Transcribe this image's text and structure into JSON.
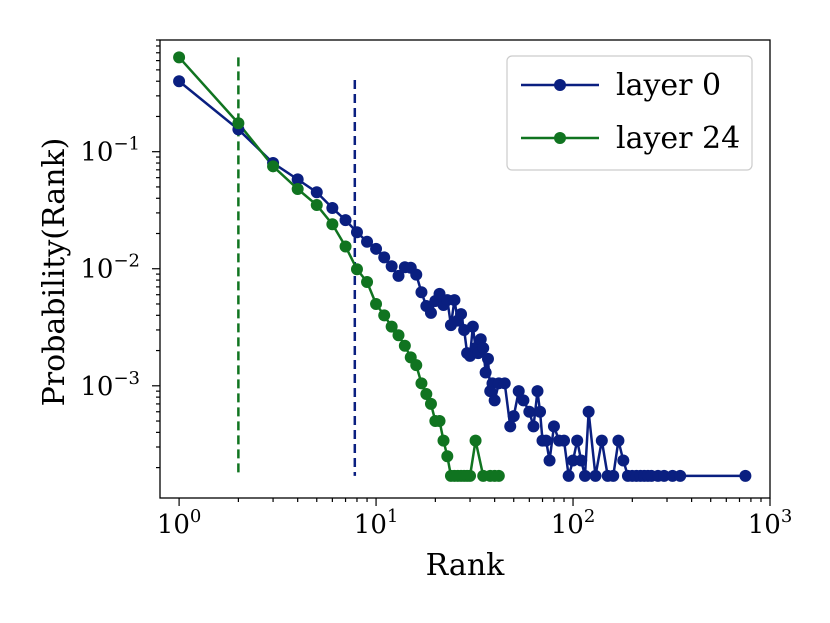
{
  "chart_data": {
    "type": "line",
    "xscale": "log",
    "yscale": "log",
    "xlim": [
      0.8,
      1000
    ],
    "ylim": [
      0.00011,
      0.9
    ],
    "xlabel": "Rank",
    "ylabel": "Probability(Rank)",
    "legend_position": "top-right",
    "x_ticks": [
      {
        "value": 1,
        "label": "10",
        "exp": "0"
      },
      {
        "value": 10,
        "label": "10",
        "exp": "1"
      },
      {
        "value": 100,
        "label": "10",
        "exp": "2"
      },
      {
        "value": 1000,
        "label": "10",
        "exp": "3"
      }
    ],
    "y_ticks": [
      {
        "value": 0.1,
        "label": "10",
        "exp": "−1"
      },
      {
        "value": 0.01,
        "label": "10",
        "exp": "−2"
      },
      {
        "value": 0.001,
        "label": "10",
        "exp": "−3"
      }
    ],
    "series": [
      {
        "name": "layer 0",
        "color": "#0a1f80",
        "x": [
          1,
          2,
          3,
          4,
          5,
          6,
          7,
          8,
          9,
          10,
          11,
          12,
          13,
          14,
          15,
          16,
          17,
          18,
          19,
          20,
          21,
          22,
          23,
          24,
          25,
          26,
          27,
          28,
          29,
          30,
          31,
          32,
          33,
          34,
          35,
          36,
          37,
          38,
          39,
          40,
          42,
          45,
          48,
          50,
          53,
          56,
          60,
          63,
          66,
          68,
          70,
          73,
          76,
          80,
          85,
          90,
          95,
          100,
          105,
          110,
          115,
          120,
          130,
          140,
          150,
          160,
          170,
          180,
          190,
          200,
          210,
          220,
          230,
          240,
          250,
          270,
          290,
          320,
          350,
          750
        ],
        "y": [
          0.4,
          0.155,
          0.08,
          0.058,
          0.045,
          0.033,
          0.026,
          0.0205,
          0.017,
          0.0148,
          0.0125,
          0.0105,
          0.0087,
          0.0103,
          0.0102,
          0.0089,
          0.0063,
          0.0048,
          0.0042,
          0.0053,
          0.0061,
          0.0049,
          0.0054,
          0.0033,
          0.0054,
          0.0036,
          0.0041,
          0.003,
          0.0019,
          0.0018,
          0.0032,
          0.0021,
          0.0019,
          0.0025,
          0.0021,
          0.0013,
          0.0017,
          0.0009,
          0.00105,
          0.00075,
          0.00105,
          0.00105,
          0.00045,
          0.00055,
          0.0009,
          0.00075,
          0.0006,
          0.00045,
          0.0009,
          0.0006,
          0.00034,
          0.00034,
          0.00023,
          0.00045,
          0.00034,
          0.00034,
          0.00017,
          0.00023,
          0.00034,
          0.00023,
          0.00017,
          0.0006,
          0.00017,
          0.00034,
          0.00017,
          0.00017,
          0.00034,
          0.00023,
          0.00017,
          0.00017,
          0.00017,
          0.00017,
          0.00017,
          0.00017,
          0.00017,
          0.00017,
          0.00017,
          0.00017,
          0.00017,
          0.00017
        ]
      },
      {
        "name": "layer 24",
        "color": "#107420",
        "x": [
          1,
          2,
          3,
          4,
          5,
          6,
          7,
          8,
          9,
          10,
          11,
          12,
          13,
          14,
          15,
          16,
          17,
          18,
          19,
          20,
          21,
          22,
          23,
          24,
          25,
          26,
          27,
          28,
          29,
          30,
          32,
          35,
          38,
          40,
          42
        ],
        "y": [
          0.64,
          0.175,
          0.075,
          0.048,
          0.035,
          0.024,
          0.0155,
          0.0099,
          0.0077,
          0.005,
          0.004,
          0.0032,
          0.0027,
          0.0022,
          0.00175,
          0.0015,
          0.00105,
          0.00085,
          0.0007,
          0.0005,
          0.0005,
          0.00034,
          0.00025,
          0.00017,
          0.00017,
          0.00017,
          0.00017,
          0.00017,
          0.00017,
          0.00017,
          0.00034,
          0.00017,
          0.00017,
          0.00017,
          0.00017
        ]
      }
    ],
    "vlines": [
      {
        "x": 2,
        "y_top": 0.64,
        "color": "#107420",
        "series": "layer 24"
      },
      {
        "x": 7.8,
        "y_top": 0.41,
        "color": "#0a1f80",
        "series": "layer 0"
      }
    ]
  }
}
